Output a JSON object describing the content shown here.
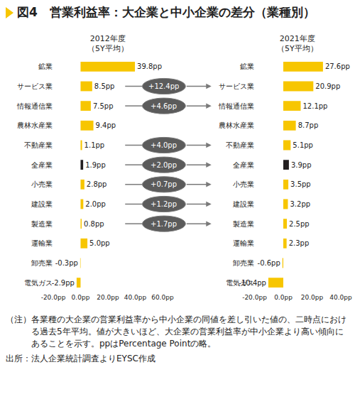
{
  "title": "図4　営業利益率：大企業と中小企業の差分（業種別）",
  "note_label": "（注）",
  "note": "各業種の大企業の営業利益率から中小企業の同値を差し引いた値の、二時点における過去5年平均。値が大きいほど、大企業の営業利益率が中小企業より高い傾向にあることを示す。ppはPercentage Pointの略。",
  "source": "出所：法人企業統計調査よりEYSC作成",
  "arrows": [
    {
      "category": "サービス業",
      "text": "+12.4pp"
    },
    {
      "category": "情報通信業",
      "text": "+4.6pp"
    },
    {
      "category": "不動産業",
      "text": "+4.0pp"
    },
    {
      "category": "全産業",
      "text": "+2.0pp"
    },
    {
      "category": "小売業",
      "text": "+0.7pp"
    },
    {
      "category": "建設業",
      "text": "+1.2pp"
    },
    {
      "category": "製造業",
      "text": "+1.7pp"
    }
  ],
  "chart_data": [
    {
      "type": "bar",
      "orientation": "horizontal",
      "title": "2012年度\n（5Y平均）",
      "categories": [
        "鉱業",
        "サービス業",
        "情報通信業",
        "農林水産業",
        "不動産業",
        "全産業",
        "小売業",
        "建設業",
        "製造業",
        "運輸業",
        "卸売業",
        "電気ガス"
      ],
      "values": [
        39.8,
        8.5,
        7.5,
        9.4,
        1.1,
        1.9,
        2.8,
        2.0,
        0.8,
        5.0,
        -0.3,
        -2.9
      ],
      "value_labels": [
        "39.8pp",
        "8.5pp",
        "7.5pp",
        "9.4pp",
        "1.1pp",
        "1.9pp",
        "2.8pp",
        "2.0pp",
        "0.8pp",
        "5.0pp",
        "-0.3pp",
        "-2.9pp"
      ],
      "colors": [
        "#f7c600",
        "#f7c600",
        "#f7c600",
        "#f7c600",
        "#f7c600",
        "#231f20",
        "#f7c600",
        "#f7c600",
        "#f7c600",
        "#f7c600",
        "#f7c600",
        "#f7c600"
      ],
      "xlim": [
        -20,
        60
      ],
      "xticks": [
        {
          "value": -20,
          "label": "-20.0pp"
        },
        {
          "value": 0,
          "label": "0.0pp"
        },
        {
          "value": 20,
          "label": "20.0pp"
        },
        {
          "value": 40,
          "label": "40.0pp"
        },
        {
          "value": 60,
          "label": "60.0pp"
        }
      ],
      "data_labels": true,
      "grid": false
    },
    {
      "type": "bar",
      "orientation": "horizontal",
      "title": "2021年度\n（5Y平均）",
      "categories": [
        "鉱業",
        "サービス業",
        "情報通信業",
        "農林水産業",
        "不動産業",
        "全産業",
        "小売業",
        "建設業",
        "製造業",
        "運輸業",
        "卸売業",
        "電気ガス"
      ],
      "values": [
        27.6,
        20.9,
        12.1,
        8.7,
        5.1,
        3.9,
        3.5,
        3.2,
        2.5,
        2.3,
        -0.6,
        -10.4
      ],
      "value_labels": [
        "27.6pp",
        "20.9pp",
        "12.1pp",
        "8.7pp",
        "5.1pp",
        "3.9pp",
        "3.5pp",
        "3.2pp",
        "2.5pp",
        "2.3pp",
        "-0.6pp",
        "-10.4pp"
      ],
      "colors": [
        "#f7c600",
        "#f7c600",
        "#f7c600",
        "#f7c600",
        "#f7c600",
        "#231f20",
        "#f7c600",
        "#f7c600",
        "#f7c600",
        "#f7c600",
        "#f7c600",
        "#f7c600"
      ],
      "xlim": [
        -20,
        40
      ],
      "xticks": [
        {
          "value": -20,
          "label": "-20.0pp"
        },
        {
          "value": 0,
          "label": "0.0pp"
        },
        {
          "value": 20,
          "label": "20.0pp"
        },
        {
          "value": 40,
          "label": "40.0pp"
        }
      ],
      "data_labels": true,
      "grid": false
    }
  ]
}
